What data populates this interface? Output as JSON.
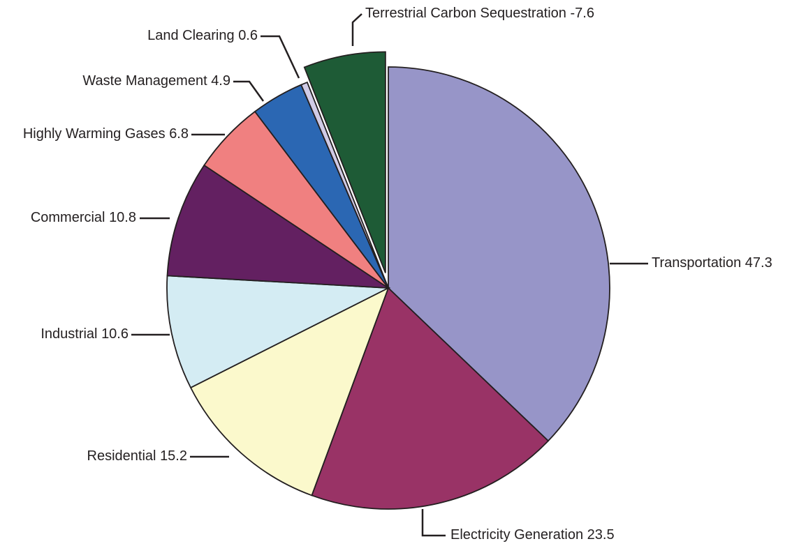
{
  "chart_data": {
    "type": "pie",
    "categories": [
      "Transportation",
      "Electricity Generation",
      "Residential",
      "Industrial",
      "Commercial",
      "Highly Warming Gases",
      "Waste Management",
      "Land Clearing",
      "Terrestrial Carbon Sequestration"
    ],
    "values": [
      47.3,
      23.5,
      15.2,
      10.6,
      10.8,
      6.8,
      4.9,
      0.6,
      -7.6
    ],
    "colors": [
      "#9795c8",
      "#993366",
      "#fbf9cc",
      "#d4ecf3",
      "#632061",
      "#f08080",
      "#2b67b3",
      "#d0cbe6",
      "#1e5b36"
    ]
  }
}
